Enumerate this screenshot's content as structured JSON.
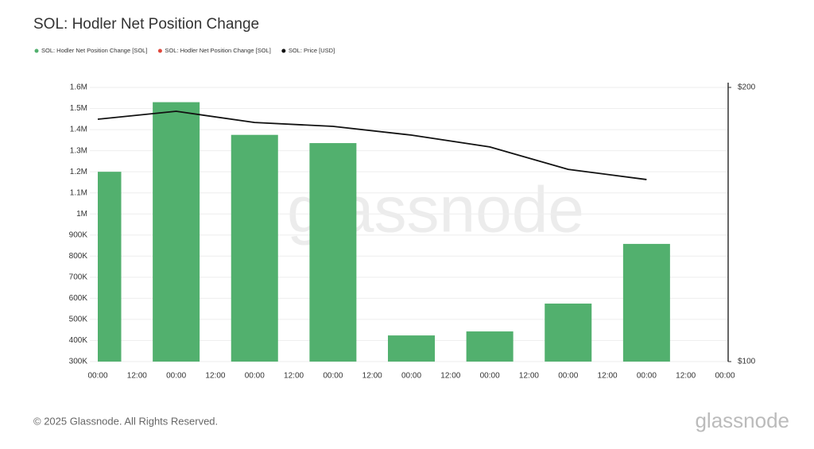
{
  "chart_data": {
    "type": "bar_line",
    "title": "SOL: Hodler Net Position Change",
    "categories": [
      "00:00",
      "12:00",
      "00:00",
      "12:00",
      "00:00",
      "12:00",
      "00:00",
      "12:00",
      "00:00",
      "12:00",
      "00:00",
      "12:00",
      "00:00",
      "12:00",
      "00:00",
      "12:00",
      "00:00"
    ],
    "series": [
      {
        "name": "SOL: Hodler Net Position Change [SOL]",
        "color": "#52b06e",
        "type": "bar",
        "values": [
          1200000,
          null,
          1530000,
          null,
          1375000,
          null,
          1336000,
          null,
          424000,
          null,
          443000,
          null,
          575000,
          null,
          858000,
          null,
          null
        ]
      },
      {
        "name": "SOL: Hodler Net Position Change [SOL]",
        "color": "#e0483c",
        "type": "bar",
        "values": [
          null,
          null,
          null,
          null,
          null,
          null,
          null,
          null,
          null,
          null,
          null,
          null,
          null,
          null,
          null,
          null,
          null
        ]
      },
      {
        "name": "SOL: Price [USD]",
        "color": "#111111",
        "type": "line",
        "axis": "y2",
        "values": [
          188.4,
          null,
          191.3,
          null,
          187.2,
          null,
          185.8,
          null,
          182.6,
          null,
          178.3,
          null,
          170.1,
          null,
          166.4,
          null,
          null
        ]
      }
    ],
    "ylim": [
      300000,
      1600000
    ],
    "yticks": [
      {
        "value": 300000,
        "label": "300K"
      },
      {
        "value": 400000,
        "label": "400K"
      },
      {
        "value": 500000,
        "label": "500K"
      },
      {
        "value": 600000,
        "label": "600K"
      },
      {
        "value": 700000,
        "label": "700K"
      },
      {
        "value": 800000,
        "label": "800K"
      },
      {
        "value": 900000,
        "label": "900K"
      },
      {
        "value": 1000000,
        "label": "1M"
      },
      {
        "value": 1100000,
        "label": "1.1M"
      },
      {
        "value": 1200000,
        "label": "1.2M"
      },
      {
        "value": 1300000,
        "label": "1.3M"
      },
      {
        "value": 1400000,
        "label": "1.4M"
      },
      {
        "value": 1500000,
        "label": "1.5M"
      },
      {
        "value": 1600000,
        "label": "1.6M"
      }
    ],
    "y2lim": [
      100,
      200
    ],
    "y2ticks": [
      {
        "value": 100,
        "label": "$100"
      },
      {
        "value": 200,
        "label": "$200"
      }
    ],
    "grid": true,
    "watermark": "glassnode",
    "footer": "© 2025 Glassnode. All Rights Reserved.",
    "logo": "glassnode"
  }
}
